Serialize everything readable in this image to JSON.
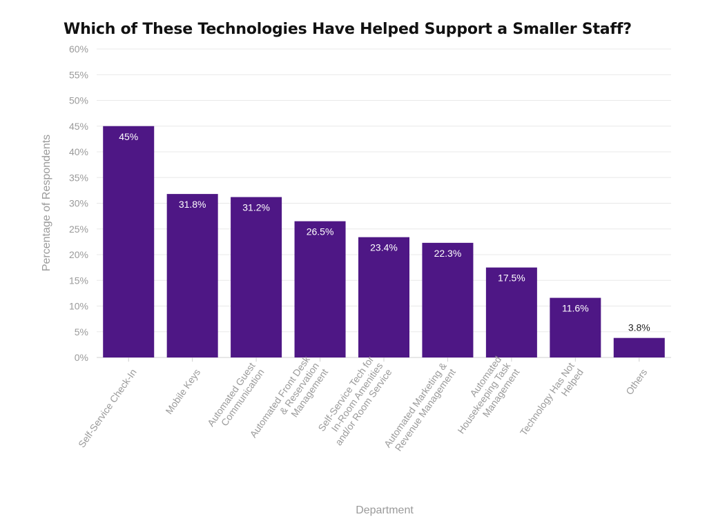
{
  "chart_data": {
    "type": "bar",
    "title": "Which of These Technologies Have Helped Support a Smaller Staff?",
    "xlabel": "Department",
    "ylabel": "Percentage of Respondents",
    "ylim": [
      0,
      60
    ],
    "y_ticks": [
      "0%",
      "5%",
      "10%",
      "15%",
      "20%",
      "25%",
      "30%",
      "35%",
      "40%",
      "45%",
      "50%",
      "55%",
      "60%"
    ],
    "grid": true,
    "bar_color": "#4e1785",
    "categories": [
      [
        "Self-Service Check-In"
      ],
      [
        "Mobile Keys"
      ],
      [
        "Automated Guest",
        "Communication"
      ],
      [
        "Automated Front Desk",
        "& Reservation",
        "Management"
      ],
      [
        "Self-Service Tech for",
        "In-Room Amenities",
        "and/or Room Service"
      ],
      [
        "Automated Marketing &",
        "Revenue Management"
      ],
      [
        "Automated",
        "Housekeeping Task",
        "Management"
      ],
      [
        "Technology Has Not",
        "Helped"
      ],
      [
        "Others"
      ]
    ],
    "values": [
      45,
      31.8,
      31.2,
      26.5,
      23.4,
      22.3,
      17.5,
      11.6,
      3.8
    ],
    "value_labels": [
      "45%",
      "31.8%",
      "31.2%",
      "26.5%",
      "23.4%",
      "22.3%",
      "17.5%",
      "11.6%",
      "3.8%"
    ]
  }
}
